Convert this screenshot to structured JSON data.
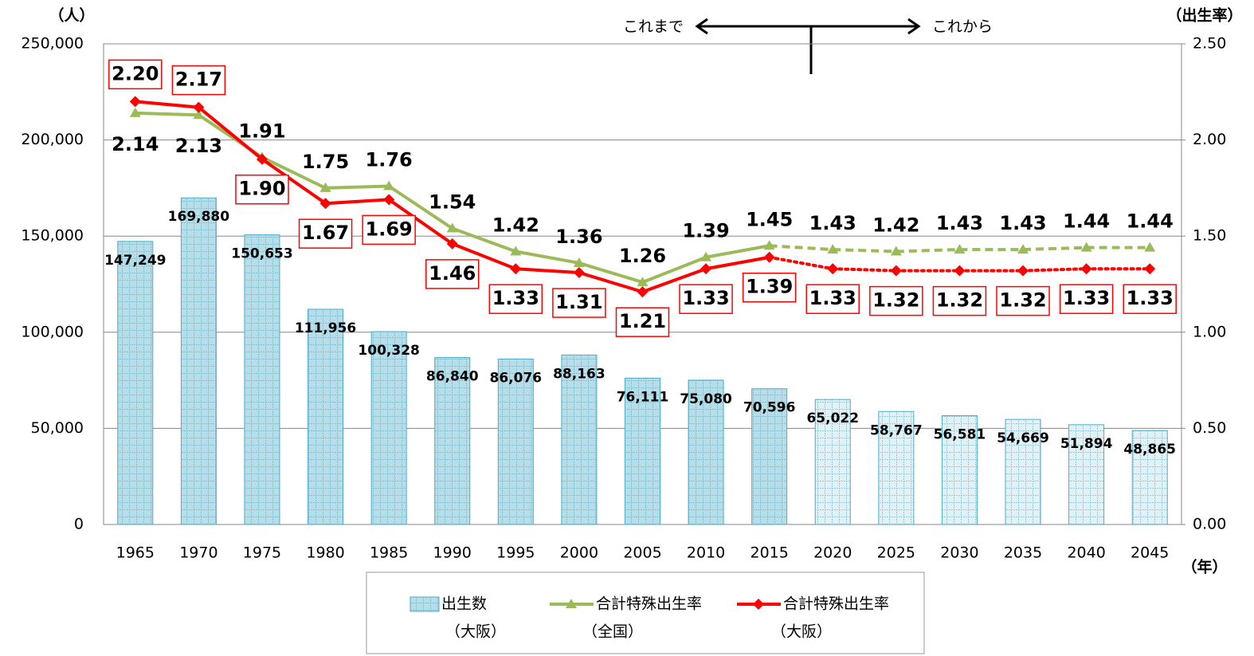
{
  "chart_data": {
    "type": "combo",
    "y_unit_label": "（人）",
    "y2_unit_label": "（出生率）",
    "x_unit_label": "（年）",
    "annotation_past": "これまで",
    "annotation_future": "これから",
    "categories": [
      "1965",
      "1970",
      "1975",
      "1980",
      "1985",
      "1990",
      "1995",
      "2000",
      "2005",
      "2010",
      "2015",
      "2020",
      "2025",
      "2030",
      "2035",
      "2040",
      "2045"
    ],
    "ylim": [
      0,
      250000
    ],
    "yticks": [
      {
        "value": 0,
        "label": "0"
      },
      {
        "value": 50000,
        "label": "50,000"
      },
      {
        "value": 100000,
        "label": "100,000"
      },
      {
        "value": 150000,
        "label": "150,000"
      },
      {
        "value": 200000,
        "label": "200,000"
      },
      {
        "value": 250000,
        "label": "250,000"
      }
    ],
    "y2lim": [
      0,
      2.5
    ],
    "y2ticks": [
      {
        "value": 0,
        "label": "0.00"
      },
      {
        "value": 0.5,
        "label": "0.50"
      },
      {
        "value": 1,
        "label": "1.00"
      },
      {
        "value": 1.5,
        "label": "1.50"
      },
      {
        "value": 2,
        "label": "2.00"
      },
      {
        "value": 2.5,
        "label": "2.50"
      }
    ],
    "grid": true,
    "series": [
      {
        "type": "bar",
        "name": "出生数",
        "legend_sublabel": "（大阪）",
        "color": "#4bacc6",
        "colors": [
          "#b7dde8",
          "#b7dde8",
          "#b7dde8",
          "#b7dde8",
          "#b7dde8",
          "#b7dde8",
          "#b7dde8",
          "#b7dde8",
          "#b7dde8",
          "#b7dde8",
          "#b7dde8",
          "#e2f1f6",
          "#e2f1f6",
          "#e2f1f6",
          "#e2f1f6",
          "#e2f1f6",
          "#e2f1f6"
        ],
        "values": [
          147249,
          169880,
          150653,
          111956,
          100328,
          86840,
          86076,
          88163,
          76111,
          75080,
          70596,
          65022,
          58767,
          56581,
          54669,
          51894,
          48865
        ],
        "value_labels": [
          "147,249",
          "169,880",
          "150,653",
          "111,956",
          "100,328",
          "86,840",
          "86,076",
          "88,163",
          "76,111",
          "75,080",
          "70,596",
          "65,022",
          "58,767",
          "56,581",
          "54,669",
          "51,894",
          "48,865"
        ]
      },
      {
        "type": "line",
        "axis": "y2",
        "name": "合計特殊出生率",
        "legend_sublabel": "（全国）",
        "color": "#9bbb59",
        "marker": "triangle",
        "segment_styles": [
          "solid",
          "solid",
          "solid",
          "solid",
          "solid",
          "solid",
          "solid",
          "solid",
          "solid",
          "solid",
          "dashed",
          "dashed",
          "dashed",
          "dashed",
          "dashed",
          "dashed"
        ],
        "values": [
          2.14,
          2.13,
          1.91,
          1.75,
          1.76,
          1.54,
          1.42,
          1.36,
          1.26,
          1.39,
          1.45,
          1.43,
          1.42,
          1.43,
          1.43,
          1.44,
          1.44
        ]
      },
      {
        "type": "line",
        "axis": "y2",
        "name": "合計特殊出生率",
        "legend_sublabel": "（大阪）",
        "color": "#ff0000",
        "marker": "diamond",
        "boxed_labels": true,
        "segment_styles": [
          "solid",
          "solid",
          "solid",
          "solid",
          "solid",
          "solid",
          "solid",
          "solid",
          "solid",
          "solid",
          "dotted",
          "dotted",
          "dotted",
          "dotted",
          "dotted",
          "dotted"
        ],
        "values": [
          2.2,
          2.17,
          1.9,
          1.67,
          1.69,
          1.46,
          1.33,
          1.31,
          1.21,
          1.33,
          1.39,
          1.33,
          1.32,
          1.32,
          1.32,
          1.33,
          1.33
        ],
        "value_labels": [
          "2.20",
          "2.17",
          "1.90",
          "1.67",
          "1.69",
          "1.46",
          "1.33",
          "1.31",
          "1.21",
          "1.33",
          "1.39",
          "1.33",
          "1.32",
          "1.32",
          "1.32",
          "1.33",
          "1.33"
        ]
      }
    ]
  }
}
